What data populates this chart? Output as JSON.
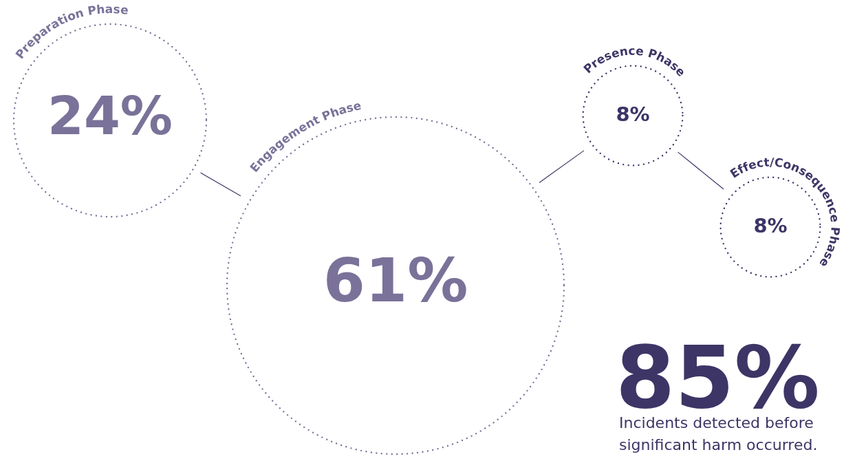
{
  "chart_data": {
    "type": "other",
    "categories": [
      "Preparation Phase",
      "Engagement Phase",
      "Presence Phase",
      "Effect/Consequence Phase"
    ],
    "values": [
      24,
      61,
      8,
      8
    ],
    "colors": [
      "#7a7299",
      "#7a7299",
      "#3d3566",
      "#3d3566"
    ],
    "value_labels": [
      "24%",
      "61%",
      "8%",
      "8%"
    ],
    "annotations": [
      "85%",
      "Incidents detected before significant harm occurred."
    ]
  }
}
